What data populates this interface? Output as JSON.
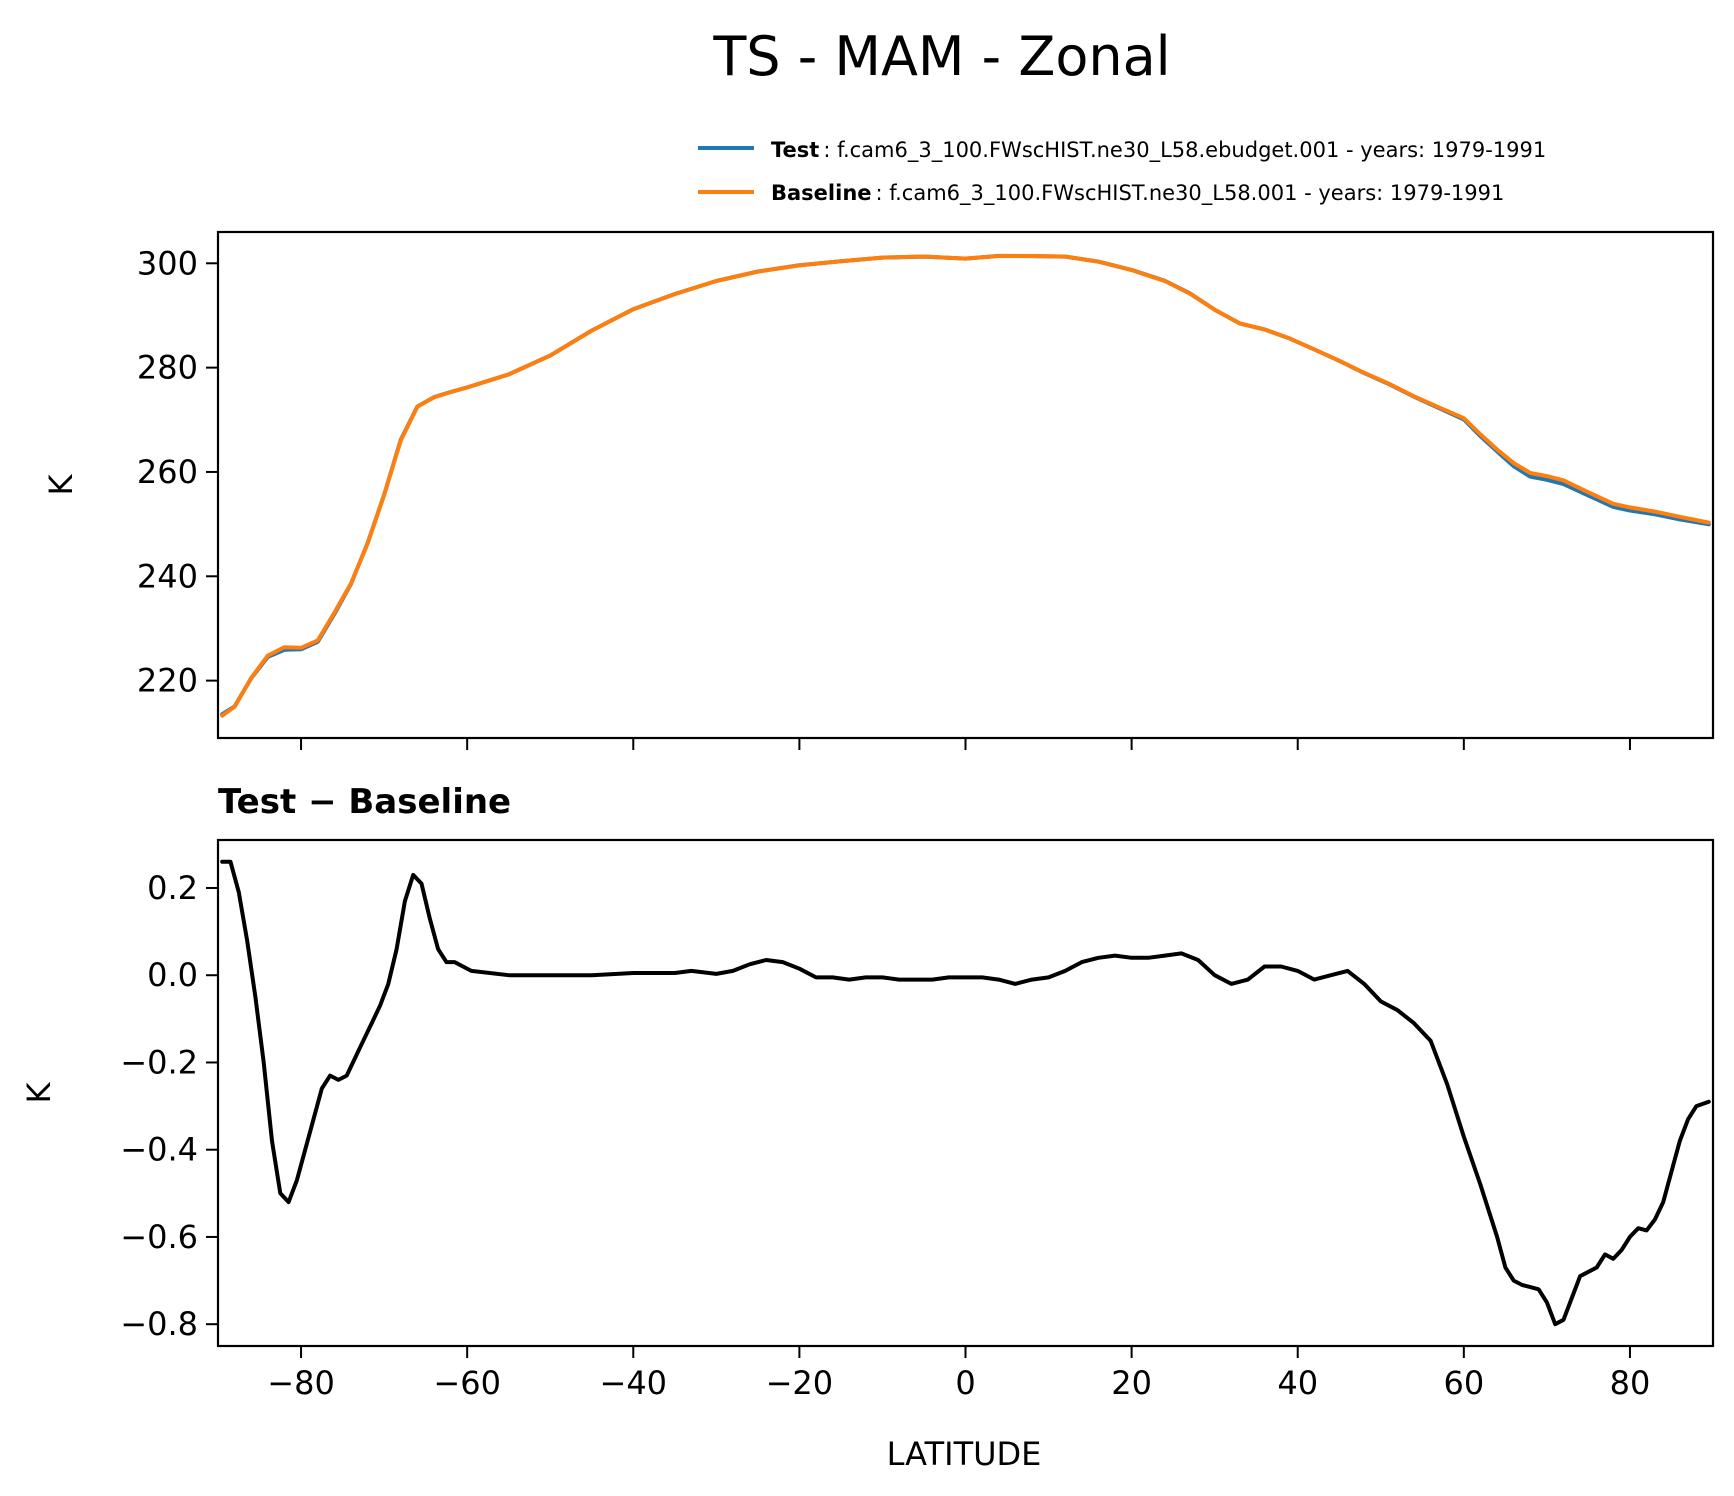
{
  "chart_data": [
    {
      "type": "line",
      "title": "TS - MAM - Zonal",
      "xlabel": "",
      "ylabel": "K",
      "xlim": [
        -90,
        90
      ],
      "ylim": [
        209,
        306
      ],
      "yticks": [
        220,
        240,
        260,
        280,
        300
      ],
      "ytick_labels": [
        "220",
        "240",
        "260",
        "280",
        "300"
      ],
      "xticks": [
        -80,
        -60,
        -40,
        -20,
        0,
        20,
        40,
        60,
        80
      ],
      "legend": {
        "placement": "top-right, above plot",
        "entries": [
          {
            "name": "Test",
            "description": ": f.cam6_3_100.FWscHIST.ne30_L58.ebudget.001 - years: 1979-1991",
            "color": "#1f77b4"
          },
          {
            "name": "Baseline",
            "description": ": f.cam6_3_100.FWscHIST.ne30_L58.001 - years: 1979-1991",
            "color": "#ff7f0e"
          }
        ]
      },
      "series": [
        {
          "name": "Baseline",
          "color": "#ff7f0e",
          "x": [
            -89.5,
            -88,
            -86,
            -84,
            -82,
            -80,
            -78,
            -76,
            -74,
            -72,
            -70,
            -68,
            -66,
            -64,
            -62,
            -60,
            -55,
            -50,
            -45,
            -40,
            -35,
            -30,
            -25,
            -20,
            -15,
            -10,
            -5,
            0,
            4,
            8,
            12,
            16,
            20,
            24,
            27,
            30,
            33,
            36,
            39,
            42,
            45,
            48,
            51,
            54,
            57,
            60,
            62,
            64,
            66,
            68,
            70,
            72,
            75,
            78,
            80,
            83,
            86,
            89.5
          ],
          "y": [
            213.3,
            215,
            220.5,
            224.8,
            226.4,
            226.3,
            227.7,
            233,
            238.6,
            246.2,
            255.6,
            266,
            272.5,
            274.3,
            275.3,
            276.2,
            278.7,
            282.3,
            287.1,
            291.2,
            294.1,
            296.6,
            298.4,
            299.6,
            300.4,
            301.1,
            301.3,
            300.9,
            301.4,
            301.4,
            301.3,
            300.3,
            298.7,
            296.6,
            294.2,
            291.1,
            288.5,
            287.3,
            285.6,
            283.5,
            281.3,
            279,
            276.9,
            274.5,
            272.4,
            270.3,
            267.2,
            264.3,
            261.7,
            259.8,
            259.2,
            258.4,
            256.1,
            253.9,
            253.2,
            252.4,
            251.4,
            250.3
          ]
        },
        {
          "name": "Test",
          "color": "#1f77b4",
          "x": [
            -89.5,
            -88,
            -86,
            -84,
            -82,
            -80,
            -78,
            -76,
            -74,
            -72,
            -70,
            -68,
            -66,
            -64,
            -62,
            -60,
            -55,
            -50,
            -45,
            -40,
            -35,
            -30,
            -25,
            -20,
            -15,
            -10,
            -5,
            0,
            4,
            8,
            12,
            16,
            20,
            24,
            27,
            30,
            33,
            36,
            39,
            42,
            45,
            48,
            51,
            54,
            57,
            60,
            62,
            64,
            66,
            68,
            70,
            72,
            75,
            78,
            80,
            83,
            86,
            89.5
          ],
          "y": [
            213.56,
            215.05,
            220.45,
            224.55,
            225.9,
            226.0,
            227.45,
            232.75,
            238.5,
            246.3,
            255.6,
            266.15,
            272.53,
            274.33,
            275.33,
            276.21,
            278.71,
            282.3,
            287.11,
            291.21,
            294.11,
            296.6,
            298.43,
            299.63,
            300.39,
            301.09,
            301.29,
            300.9,
            301.41,
            301.38,
            301.28,
            300.33,
            298.74,
            296.64,
            294.25,
            291.1,
            288.48,
            287.32,
            285.61,
            283.49,
            281.31,
            278.96,
            276.83,
            274.42,
            272.26,
            270.07,
            266.85,
            263.94,
            261.1,
            259.1,
            258.5,
            257.7,
            255.47,
            253.3,
            252.62,
            251.88,
            250.9,
            249.96
          ]
        }
      ]
    },
    {
      "type": "line",
      "title": "Test − Baseline",
      "xlabel": "LATITUDE",
      "ylabel": "K",
      "xlim": [
        -90,
        90
      ],
      "ylim": [
        -0.85,
        0.31
      ],
      "yticks": [
        -0.8,
        -0.6,
        -0.4,
        -0.2,
        0.0,
        0.2
      ],
      "ytick_labels": [
        "−0.8",
        "−0.6",
        "−0.4",
        "−0.2",
        "0.0",
        "0.2"
      ],
      "xticks": [
        -80,
        -60,
        -40,
        -20,
        0,
        20,
        40,
        60,
        80
      ],
      "xtick_labels": [
        "−80",
        "−60",
        "−40",
        "−20",
        "0",
        "20",
        "40",
        "60",
        "80"
      ],
      "series": [
        {
          "name": "Test − Baseline",
          "color": "#000000",
          "x": [
            -89.5,
            -88.5,
            -87.5,
            -86.5,
            -85.5,
            -84.5,
            -83.5,
            -82.5,
            -81.5,
            -80.5,
            -79.5,
            -78.5,
            -77.5,
            -76.5,
            -75.5,
            -74.5,
            -73.5,
            -72.5,
            -71.5,
            -70.5,
            -69.5,
            -68.5,
            -67.5,
            -66.5,
            -65.5,
            -64.5,
            -63.5,
            -62.5,
            -61.5,
            -60.5,
            -59.5,
            -55,
            -50,
            -45,
            -40,
            -38,
            -35,
            -33,
            -30,
            -28,
            -26,
            -24,
            -22,
            -20,
            -18,
            -16,
            -14,
            -12,
            -10,
            -8,
            -6,
            -4,
            -2,
            0,
            2,
            4,
            6,
            8,
            10,
            12,
            14,
            16,
            18,
            20,
            22,
            24,
            26,
            28,
            30,
            32,
            34,
            36,
            38,
            40,
            42,
            44,
            46,
            48,
            50,
            52,
            54,
            56,
            58,
            60,
            62,
            64,
            65,
            66,
            67,
            68,
            69,
            70,
            71,
            72,
            73,
            74,
            75,
            76,
            77,
            78,
            79,
            80,
            81,
            82,
            83,
            84,
            85,
            86,
            87,
            88,
            89.5
          ],
          "y": [
            0.26,
            0.26,
            0.19,
            0.08,
            -0.05,
            -0.2,
            -0.38,
            -0.5,
            -0.52,
            -0.47,
            -0.4,
            -0.33,
            -0.26,
            -0.23,
            -0.24,
            -0.23,
            -0.19,
            -0.15,
            -0.11,
            -0.07,
            -0.02,
            0.06,
            0.17,
            0.23,
            0.21,
            0.13,
            0.06,
            0.03,
            0.03,
            0.02,
            0.01,
            0.0,
            0.0,
            0.0,
            0.005,
            0.005,
            0.005,
            0.01,
            0.003,
            0.01,
            0.025,
            0.035,
            0.03,
            0.015,
            -0.005,
            -0.005,
            -0.01,
            -0.005,
            -0.005,
            -0.01,
            -0.01,
            -0.01,
            -0.005,
            -0.005,
            -0.005,
            -0.01,
            -0.02,
            -0.01,
            -0.005,
            0.01,
            0.03,
            0.04,
            0.045,
            0.04,
            0.04,
            0.045,
            0.05,
            0.035,
            0.0,
            -0.02,
            -0.01,
            0.02,
            0.02,
            0.01,
            -0.01,
            0.0,
            0.01,
            -0.02,
            -0.06,
            -0.08,
            -0.11,
            -0.15,
            -0.25,
            -0.37,
            -0.48,
            -0.6,
            -0.67,
            -0.7,
            -0.71,
            -0.715,
            -0.72,
            -0.75,
            -0.8,
            -0.79,
            -0.74,
            -0.69,
            -0.68,
            -0.67,
            -0.64,
            -0.65,
            -0.63,
            -0.6,
            -0.58,
            -0.585,
            -0.56,
            -0.52,
            -0.45,
            -0.38,
            -0.33,
            -0.3,
            -0.29
          ]
        }
      ]
    }
  ]
}
